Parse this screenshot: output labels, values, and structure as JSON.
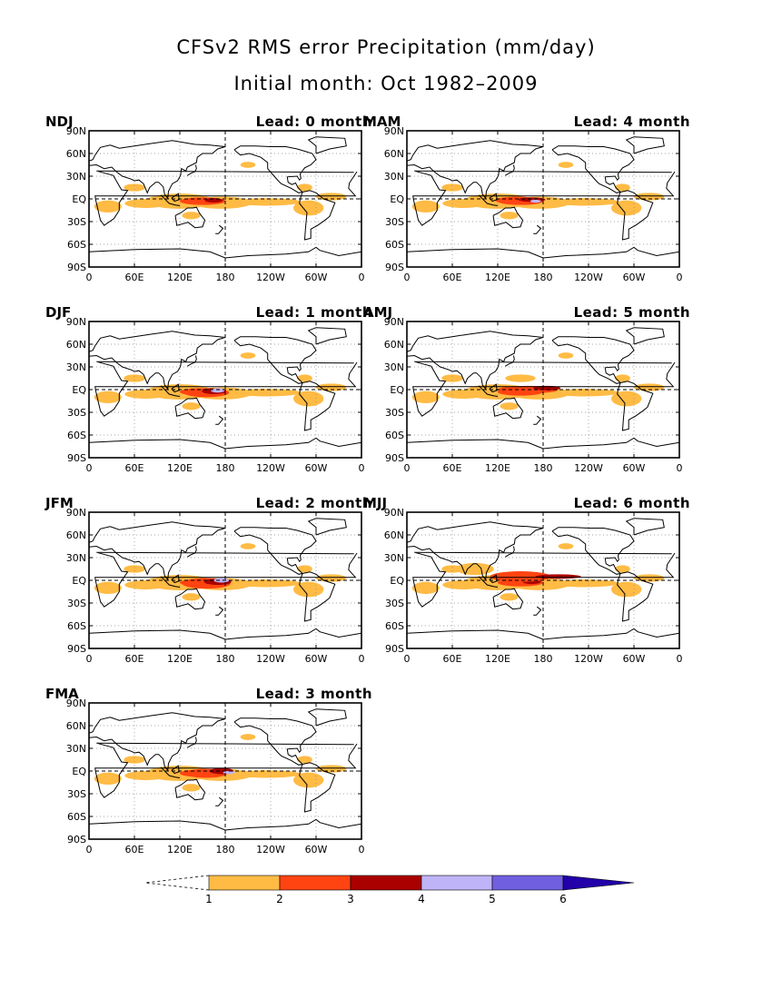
{
  "figure": {
    "title": "CFSv2 RMS error Precipitation (mm/day)",
    "subtitle": "Initial month: Oct 1982–2009"
  },
  "axes": {
    "lat_ticks": [
      "90N",
      "60N",
      "30N",
      "EQ",
      "30S",
      "60S",
      "90S"
    ],
    "lon_ticks": [
      "0",
      "60E",
      "120E",
      "180",
      "120W",
      "60W",
      "0"
    ]
  },
  "panels": [
    {
      "season": "NDJ",
      "lead": "Lead: 0 month"
    },
    {
      "season": "MAM",
      "lead": "Lead: 4 month"
    },
    {
      "season": "DJF",
      "lead": "Lead: 1 month"
    },
    {
      "season": "AMJ",
      "lead": "Lead: 5 month"
    },
    {
      "season": "JFM",
      "lead": "Lead: 2 month"
    },
    {
      "season": "MJJ",
      "lead": "Lead: 6 month"
    },
    {
      "season": "FMA",
      "lead": "Lead: 3 month"
    }
  ],
  "colorbar": {
    "labels": [
      "1",
      "2",
      "3",
      "4",
      "5",
      "6"
    ],
    "colors": [
      "#ffbb44",
      "#ff4411",
      "#aa0000",
      "#c0b4f8",
      "#7060e0",
      "#2200aa"
    ],
    "units": "mm/day"
  }
}
